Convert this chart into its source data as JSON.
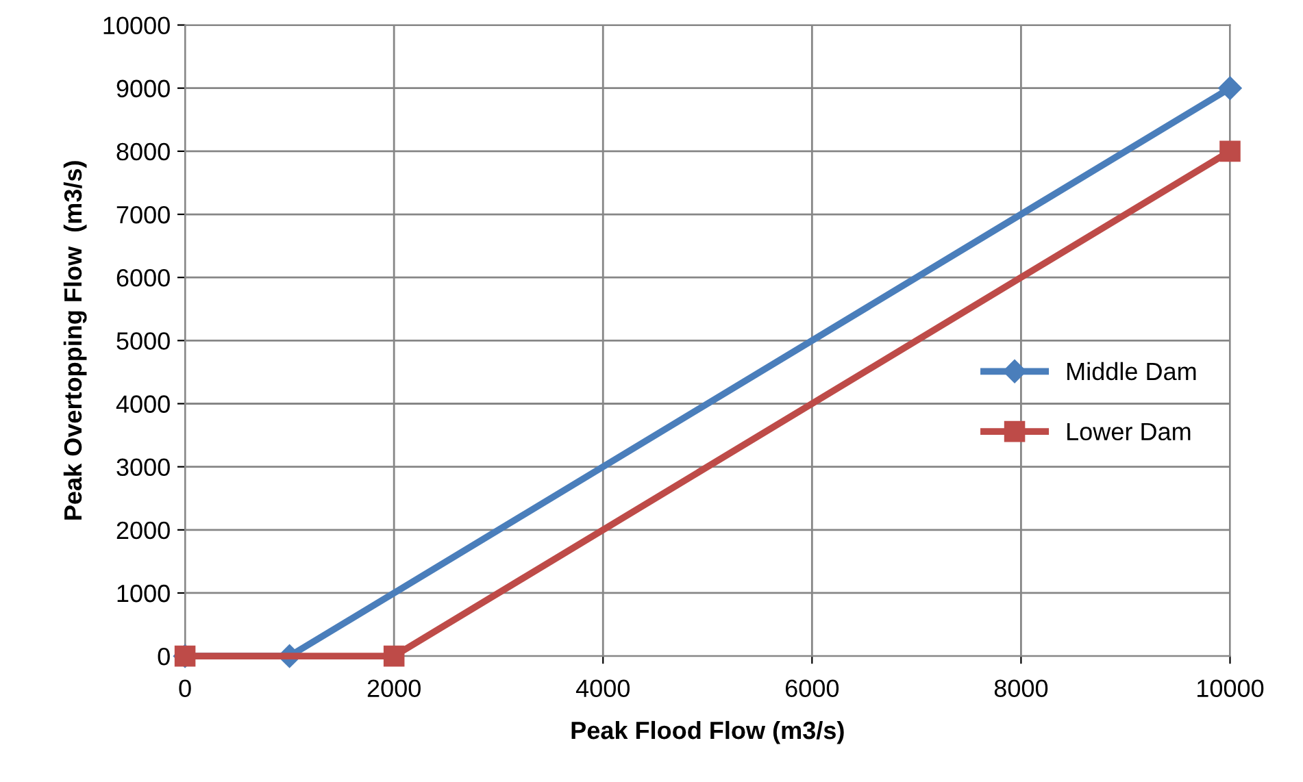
{
  "chart_data": {
    "type": "line",
    "xlabel": "Peak Flood Flow (m3/s)",
    "ylabel": "Peak Overtopping Flow  (m3/s)",
    "series": [
      {
        "name": "Middle Dam",
        "color": "#4a7ebb",
        "marker": "diamond",
        "x": [
          0,
          1000,
          10000
        ],
        "values": [
          0,
          0,
          9000
        ]
      },
      {
        "name": "Lower Dam",
        "color": "#be4b48",
        "marker": "square",
        "x": [
          0,
          2000,
          10000
        ],
        "values": [
          0,
          0,
          8000
        ]
      }
    ],
    "xlim": [
      0,
      10000
    ],
    "xticks": [
      0,
      2000,
      4000,
      6000,
      8000,
      10000
    ],
    "ylim": [
      0,
      10000
    ],
    "yticks": [
      0,
      1000,
      2000,
      3000,
      4000,
      5000,
      6000,
      7000,
      8000,
      9000,
      10000
    ],
    "grid": true,
    "legend": "right",
    "line_style": "solid"
  }
}
